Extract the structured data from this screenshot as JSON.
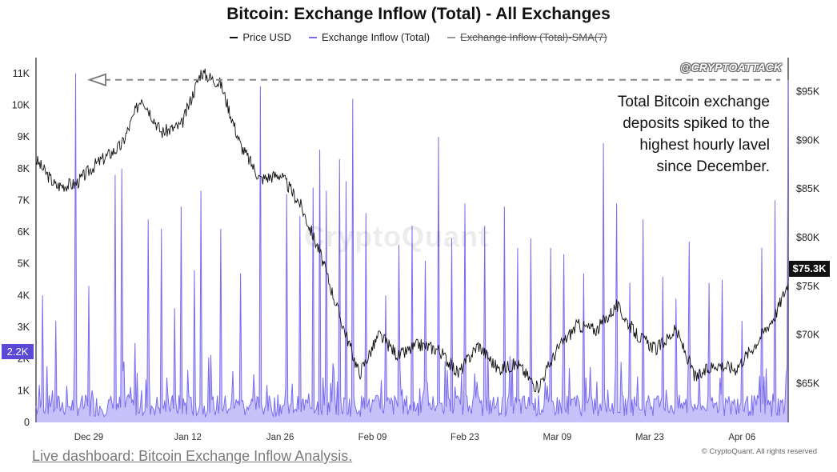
{
  "title": "Bitcoin: Exchange Inflow (Total) - All Exchanges",
  "legend": {
    "price": "Price USD",
    "inflow": "Exchange Inflow (Total)",
    "sma": "Exchange Inflow (Total)-SMA(7)"
  },
  "annotation": [
    "Total Bitcoin exchange",
    "deposits spiked to the",
    "highest hourly lavel",
    "since December."
  ],
  "current_price_label": "$75.3K",
  "current_inflow_label": "2.2K",
  "watermark": "CryptoQuant",
  "tag": "@CRYPTOATTACK",
  "footer_link": "Live dashboard: Bitcoin Exchange Inflow Analysis.",
  "copyright": "© CryptoQuant. All rights reserved",
  "colors": {
    "price": "#111111",
    "inflow": "#7b6cf0",
    "sma": "#999999",
    "reference_line": "#888888"
  },
  "chart_data": {
    "type": "line",
    "title": "Bitcoin: Exchange Inflow (Total) - All Exchanges",
    "x_ticks": [
      "Dec 29",
      "Jan 12",
      "Jan 26",
      "Feb 09",
      "Feb 23",
      "Mar 09",
      "Mar 23",
      "Apr 06"
    ],
    "y_left": {
      "ticks": [
        "0",
        "1K",
        "2K",
        "3K",
        "4K",
        "5K",
        "6K",
        "7K",
        "8K",
        "9K",
        "10K",
        "11K"
      ],
      "range": [
        0,
        11500
      ]
    },
    "y_right": {
      "ticks": [
        "$65K",
        "$70K",
        "$75K",
        "$80K",
        "$85K",
        "$90K",
        "$95K"
      ],
      "tick_values": [
        65000,
        70000,
        75000,
        80000,
        85000,
        90000,
        95000
      ],
      "range": [
        61000,
        98500
      ]
    },
    "date_range": [
      "Dec 21",
      "Apr 13"
    ],
    "reference_line": {
      "value": 10800,
      "axis": "left",
      "style": "dashed",
      "arrow": "left"
    },
    "series": [
      {
        "name": "Price USD",
        "axis": "right",
        "kind": "line",
        "dates": [
          "Dec 21",
          "Dec 24",
          "Dec 27",
          "Dec 30",
          "Jan 02",
          "Jan 05",
          "Jan 08",
          "Jan 11",
          "Jan 14",
          "Jan 17",
          "Jan 20",
          "Jan 23",
          "Jan 26",
          "Jan 29",
          "Feb 01",
          "Feb 04",
          "Feb 07",
          "Feb 10",
          "Feb 13",
          "Feb 16",
          "Feb 19",
          "Feb 22",
          "Feb 25",
          "Feb 28",
          "Mar 03",
          "Mar 06",
          "Mar 09",
          "Mar 12",
          "Mar 15",
          "Mar 18",
          "Mar 21",
          "Mar 24",
          "Mar 27",
          "Mar 30",
          "Apr 02",
          "Apr 05",
          "Apr 08",
          "Apr 11",
          "Apr 13"
        ],
        "values": [
          88000,
          85300,
          85500,
          87500,
          89500,
          94500,
          90800,
          91500,
          97000,
          95800,
          89500,
          86000,
          86500,
          83500,
          78500,
          72000,
          66000,
          70000,
          67800,
          69000,
          68500,
          66000,
          69000,
          66500,
          67000,
          64500,
          68500,
          71000,
          70500,
          73000,
          70000,
          68500,
          70500,
          65500,
          67000,
          66500,
          69000,
          72000,
          75300
        ]
      },
      {
        "name": "Exchange Inflow (Total)",
        "axis": "left",
        "kind": "area",
        "spikes": [
          {
            "date": "Dec 22",
            "value": 4000
          },
          {
            "date": "Dec 24",
            "value": 3200
          },
          {
            "date": "Dec 27",
            "value": 11000
          },
          {
            "date": "Dec 29",
            "value": 4300
          },
          {
            "date": "Jan 01",
            "value": 7800
          },
          {
            "date": "Jan 02",
            "value": 8000
          },
          {
            "date": "Jan 04",
            "value": 2500
          },
          {
            "date": "Jan 06",
            "value": 6400
          },
          {
            "date": "Jan 08",
            "value": 6100
          },
          {
            "date": "Jan 10",
            "value": 3600
          },
          {
            "date": "Jan 11",
            "value": 6800
          },
          {
            "date": "Jan 13",
            "value": 4800
          },
          {
            "date": "Jan 14",
            "value": 7300
          },
          {
            "date": "Jan 17",
            "value": 6100
          },
          {
            "date": "Jan 20",
            "value": 4700
          },
          {
            "date": "Jan 23",
            "value": 10600
          },
          {
            "date": "Jan 27",
            "value": 7200
          },
          {
            "date": "Jan 29",
            "value": 6500
          },
          {
            "date": "Jan 31",
            "value": 7400
          },
          {
            "date": "Feb 01",
            "value": 8600
          },
          {
            "date": "Feb 02",
            "value": 7300
          },
          {
            "date": "Feb 04",
            "value": 8300
          },
          {
            "date": "Feb 05",
            "value": 7600
          },
          {
            "date": "Feb 06",
            "value": 10200
          },
          {
            "date": "Feb 08",
            "value": 6600
          },
          {
            "date": "Feb 11",
            "value": 4000
          },
          {
            "date": "Feb 13",
            "value": 5600
          },
          {
            "date": "Feb 15",
            "value": 6200
          },
          {
            "date": "Feb 17",
            "value": 5100
          },
          {
            "date": "Feb 19",
            "value": 9000
          },
          {
            "date": "Feb 21",
            "value": 5800
          },
          {
            "date": "Feb 23",
            "value": 6900
          },
          {
            "date": "Feb 26",
            "value": 6200
          },
          {
            "date": "Mar 01",
            "value": 6800
          },
          {
            "date": "Mar 03",
            "value": 5500
          },
          {
            "date": "Mar 05",
            "value": 5800
          },
          {
            "date": "Mar 08",
            "value": 5500
          },
          {
            "date": "Mar 10",
            "value": 5300
          },
          {
            "date": "Mar 13",
            "value": 4700
          },
          {
            "date": "Mar 16",
            "value": 8800
          },
          {
            "date": "Mar 18",
            "value": 6900
          },
          {
            "date": "Mar 20",
            "value": 4400
          },
          {
            "date": "Mar 22",
            "value": 6400
          },
          {
            "date": "Mar 25",
            "value": 4600
          },
          {
            "date": "Mar 27",
            "value": 3900
          },
          {
            "date": "Mar 29",
            "value": 5700
          },
          {
            "date": "Apr 01",
            "value": 4400
          },
          {
            "date": "Apr 03",
            "value": 4500
          },
          {
            "date": "Apr 06",
            "value": 3200
          },
          {
            "date": "Apr 09",
            "value": 5500
          },
          {
            "date": "Apr 11",
            "value": 7000
          },
          {
            "date": "Apr 13",
            "value": 10800
          }
        ]
      }
    ]
  }
}
